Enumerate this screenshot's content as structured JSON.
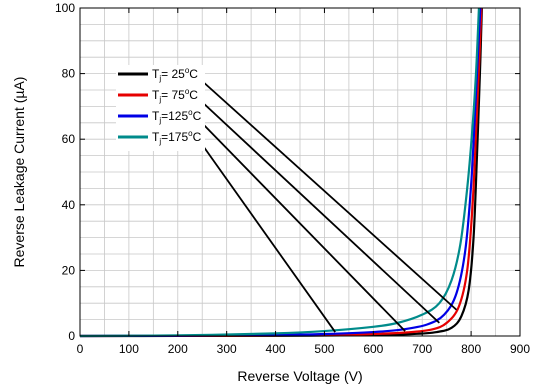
{
  "chart_data": {
    "type": "line",
    "title": "",
    "xlabel": "Reverse Voltage (V)",
    "ylabel": "Reverse Leakage Current (µA)",
    "xlim": [
      0,
      900
    ],
    "ylim": [
      0,
      100
    ],
    "x_ticks": [
      0,
      100,
      200,
      300,
      400,
      500,
      600,
      700,
      800,
      900
    ],
    "y_ticks": [
      0,
      20,
      40,
      60,
      80,
      100
    ],
    "grid": true,
    "legend_position": "upper-left",
    "series": [
      {
        "name": "Tj= 25°C",
        "legend_prefix": "T",
        "legend_sub": "j",
        "legend_value": "=  25",
        "legend_unit": "C",
        "color": "#000000",
        "points": [
          [
            0,
            0
          ],
          [
            200,
            0.02
          ],
          [
            400,
            0.08
          ],
          [
            500,
            0.15
          ],
          [
            600,
            0.3
          ],
          [
            680,
            0.6
          ],
          [
            730,
            1.2
          ],
          [
            760,
            2.5
          ],
          [
            780,
            6
          ],
          [
            795,
            14
          ],
          [
            805,
            30
          ],
          [
            812,
            55
          ],
          [
            818,
            80
          ],
          [
            822,
            100
          ]
        ]
      },
      {
        "name": "Tj= 75°C",
        "legend_prefix": "T",
        "legend_sub": "j",
        "legend_value": "=  75",
        "legend_unit": "C",
        "color": "#e60000",
        "points": [
          [
            0,
            0
          ],
          [
            200,
            0.04
          ],
          [
            400,
            0.15
          ],
          [
            500,
            0.3
          ],
          [
            600,
            0.6
          ],
          [
            670,
            1.1
          ],
          [
            720,
            2
          ],
          [
            750,
            4
          ],
          [
            775,
            9
          ],
          [
            792,
            20
          ],
          [
            803,
            40
          ],
          [
            811,
            65
          ],
          [
            817,
            85
          ],
          [
            821,
            100
          ]
        ]
      },
      {
        "name": "Tj=125°C",
        "legend_prefix": "T",
        "legend_sub": "j",
        "legend_value": "=125",
        "legend_unit": "C",
        "color": "#0000e6",
        "points": [
          [
            0,
            0
          ],
          [
            200,
            0.08
          ],
          [
            400,
            0.3
          ],
          [
            500,
            0.6
          ],
          [
            600,
            1.2
          ],
          [
            660,
            2
          ],
          [
            710,
            3.5
          ],
          [
            745,
            6.5
          ],
          [
            770,
            13
          ],
          [
            788,
            26
          ],
          [
            800,
            46
          ],
          [
            808,
            68
          ],
          [
            814,
            86
          ],
          [
            819,
            100
          ]
        ]
      },
      {
        "name": "Tj=175°C",
        "legend_prefix": "T",
        "legend_sub": "j",
        "legend_value": "=175",
        "legend_unit": "C",
        "color": "#008b8b",
        "points": [
          [
            0,
            0
          ],
          [
            200,
            0.2
          ],
          [
            400,
            0.8
          ],
          [
            500,
            1.5
          ],
          [
            600,
            2.8
          ],
          [
            650,
            4
          ],
          [
            700,
            6.5
          ],
          [
            735,
            10
          ],
          [
            760,
            17
          ],
          [
            778,
            28
          ],
          [
            792,
            45
          ],
          [
            802,
            62
          ],
          [
            810,
            80
          ],
          [
            816,
            100
          ]
        ]
      }
    ],
    "annotation_arrows": [
      {
        "series": "Tj= 25°C",
        "from": "legend",
        "to": [
          770,
          8
        ]
      },
      {
        "series": "Tj= 75°C",
        "from": "legend",
        "to": [
          735,
          4
        ]
      },
      {
        "series": "Tj=125°C",
        "from": "legend",
        "to": [
          665,
          1.5
        ]
      },
      {
        "series": "Tj=175°C",
        "from": "legend",
        "to": [
          522,
          1.2
        ]
      }
    ]
  }
}
